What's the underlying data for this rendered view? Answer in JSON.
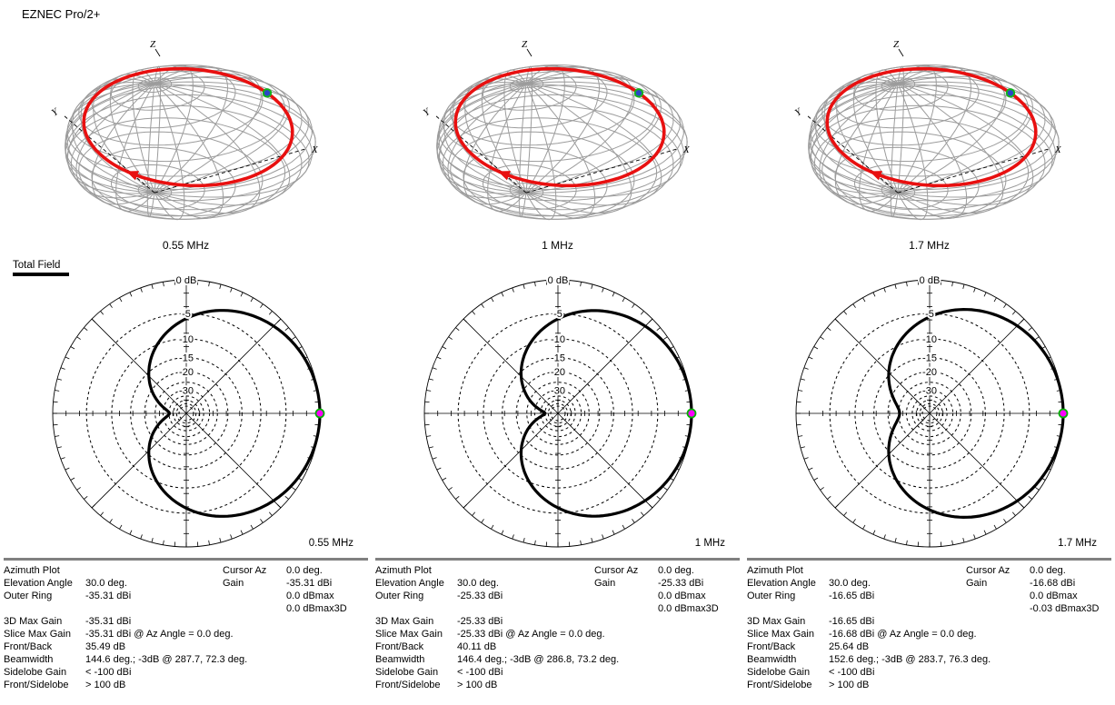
{
  "app": {
    "title": "EZNEC Pro/2+"
  },
  "legend": {
    "label": "Total Field"
  },
  "colors": {
    "pattern_line": "#000000",
    "slice_ring_red": "#e81010",
    "wireframe_gray": "#9c9c9c",
    "cursor_fill": "#ff00ff",
    "cursor_stroke": "#00b400",
    "dot3d_fill": "#2b46c8",
    "dot3d_stroke": "#14b31e",
    "table_rule": "#808080"
  },
  "columns": [
    {
      "freq_3d_label": "0.55 MHz",
      "freq_polar_label": "0.55 MHz",
      "axis_labels": {
        "z": "Z",
        "y": "Y",
        "x": "X"
      },
      "polar_top_label": "0 dB",
      "table": {
        "rows": [
          [
            "Azimuth Plot",
            "",
            "Cursor Az",
            "0.0 deg."
          ],
          [
            "Elevation Angle",
            "30.0 deg.",
            "Gain",
            "-35.31 dBi"
          ],
          [
            "Outer Ring",
            "-35.31 dBi",
            "",
            "0.0 dBmax"
          ],
          [
            "",
            "",
            "",
            "0.0 dBmax3D"
          ],
          [
            "3D Max Gain",
            "-35.31 dBi",
            "",
            ""
          ],
          [
            "Slice Max Gain",
            "-35.31 dBi @ Az Angle = 0.0 deg.",
            "",
            ""
          ],
          [
            "Front/Back",
            "35.49 dB",
            "",
            ""
          ],
          [
            "Beamwidth",
            "144.6 deg.; -3dB @ 287.7, 72.3 deg.",
            "",
            ""
          ],
          [
            "Sidelobe Gain",
            "< -100 dBi",
            "",
            ""
          ],
          [
            "Front/Sidelobe",
            "> 100 dB",
            "",
            ""
          ]
        ]
      }
    },
    {
      "freq_3d_label": "1 MHz",
      "freq_polar_label": "1 MHz",
      "axis_labels": {
        "z": "Z",
        "y": "Y",
        "x": "X"
      },
      "polar_top_label": "0 dB",
      "table": {
        "rows": [
          [
            "Azimuth Plot",
            "",
            "Cursor Az",
            "0.0 deg."
          ],
          [
            "Elevation Angle",
            "30.0 deg.",
            "Gain",
            "-25.33 dBi"
          ],
          [
            "Outer Ring",
            "-25.33 dBi",
            "",
            "0.0 dBmax"
          ],
          [
            "",
            "",
            "",
            "0.0 dBmax3D"
          ],
          [
            "3D Max Gain",
            "-25.33 dBi",
            "",
            ""
          ],
          [
            "Slice Max Gain",
            "-25.33 dBi @ Az Angle = 0.0 deg.",
            "",
            ""
          ],
          [
            "Front/Back",
            "40.11 dB",
            "",
            ""
          ],
          [
            "Beamwidth",
            "146.4 deg.; -3dB @ 286.8, 73.2 deg.",
            "",
            ""
          ],
          [
            "Sidelobe Gain",
            "< -100 dBi",
            "",
            ""
          ],
          [
            "Front/Sidelobe",
            "> 100 dB",
            "",
            ""
          ]
        ]
      }
    },
    {
      "freq_3d_label": "1.7 MHz",
      "freq_polar_label": "1.7 MHz",
      "axis_labels": {
        "z": "Z",
        "y": "Y",
        "x": "X"
      },
      "polar_top_label": "0 dB",
      "table": {
        "rows": [
          [
            "Azimuth Plot",
            "",
            "Cursor Az",
            "0.0 deg."
          ],
          [
            "Elevation Angle",
            "30.0 deg.",
            "Gain",
            "-16.68 dBi"
          ],
          [
            "Outer Ring",
            "-16.65 dBi",
            "",
            "0.0 dBmax"
          ],
          [
            "",
            "",
            "",
            "-0.03 dBmax3D"
          ],
          [
            "3D Max Gain",
            "-16.65 dBi",
            "",
            ""
          ],
          [
            "Slice Max Gain",
            "-16.68 dBi @ Az Angle = 0.0 deg.",
            "",
            ""
          ],
          [
            "Front/Back",
            "25.64 dB",
            "",
            ""
          ],
          [
            "Beamwidth",
            "152.6 deg.; -3dB @ 283.7, 76.3 deg.",
            "",
            ""
          ],
          [
            "Sidelobe Gain",
            "< -100 dBi",
            "",
            ""
          ],
          [
            "Front/Sidelobe",
            "> 100 dB",
            "",
            ""
          ]
        ]
      }
    }
  ],
  "chart_data": [
    {
      "type": "polar",
      "title": "Azimuth pattern at 0.55 MHz",
      "frequency_mhz": 0.55,
      "slice": "azimuth",
      "elevation_angle_deg": 30.0,
      "scale": "ARRL-log",
      "outer_ring_dbi": -35.31,
      "max_gain_dbi": -35.31,
      "max_azimuth_deg": 0.0,
      "front_back_db": 35.49,
      "beamwidth_deg": 144.6,
      "minus3db_azimuths_deg": [
        287.7,
        72.3
      ],
      "rings_db": [
        -5,
        -10,
        -15,
        -20,
        -25,
        -30,
        -35,
        -40,
        -45,
        -50
      ],
      "ring_labels": [
        {
          "text": "-5",
          "db": -5
        },
        {
          "text": "-10",
          "db": -10
        },
        {
          "text": "-15",
          "db": -15
        },
        {
          "text": "-20",
          "db": -20
        },
        {
          "text": "-30",
          "db": -30
        }
      ],
      "cursor": {
        "az_deg": 0.0,
        "gain_dbi": -35.31,
        "rel_db": 0.0
      }
    },
    {
      "type": "polar",
      "title": "Azimuth pattern at 1 MHz",
      "frequency_mhz": 1.0,
      "slice": "azimuth",
      "elevation_angle_deg": 30.0,
      "scale": "ARRL-log",
      "outer_ring_dbi": -25.33,
      "max_gain_dbi": -25.33,
      "max_azimuth_deg": 0.0,
      "front_back_db": 40.11,
      "beamwidth_deg": 146.4,
      "minus3db_azimuths_deg": [
        286.8,
        73.2
      ],
      "rings_db": [
        -5,
        -10,
        -15,
        -20,
        -25,
        -30,
        -35,
        -40,
        -45,
        -50
      ],
      "ring_labels": [
        {
          "text": "-5",
          "db": -5
        },
        {
          "text": "-10",
          "db": -10
        },
        {
          "text": "-15",
          "db": -15
        },
        {
          "text": "-20",
          "db": -20
        },
        {
          "text": "-30",
          "db": -30
        }
      ],
      "cursor": {
        "az_deg": 0.0,
        "gain_dbi": -25.33,
        "rel_db": 0.0
      }
    },
    {
      "type": "polar",
      "title": "Azimuth pattern at 1.7 MHz",
      "frequency_mhz": 1.7,
      "slice": "azimuth",
      "elevation_angle_deg": 30.0,
      "scale": "ARRL-log",
      "outer_ring_dbi": -16.65,
      "max_gain_dbi": -16.68,
      "max_azimuth_deg": 0.0,
      "front_back_db": 25.64,
      "beamwidth_deg": 152.6,
      "minus3db_azimuths_deg": [
        283.7,
        76.3
      ],
      "rings_db": [
        -5,
        -10,
        -15,
        -20,
        -25,
        -30,
        -35,
        -40,
        -45,
        -50
      ],
      "ring_labels": [
        {
          "text": "-5",
          "db": -5
        },
        {
          "text": "-10",
          "db": -10
        },
        {
          "text": "-15",
          "db": -15
        },
        {
          "text": "-20",
          "db": -20
        },
        {
          "text": "-30",
          "db": -30
        }
      ],
      "cursor": {
        "az_deg": 0.0,
        "gain_dbi": -16.68,
        "rel_db": 0.0
      }
    }
  ]
}
